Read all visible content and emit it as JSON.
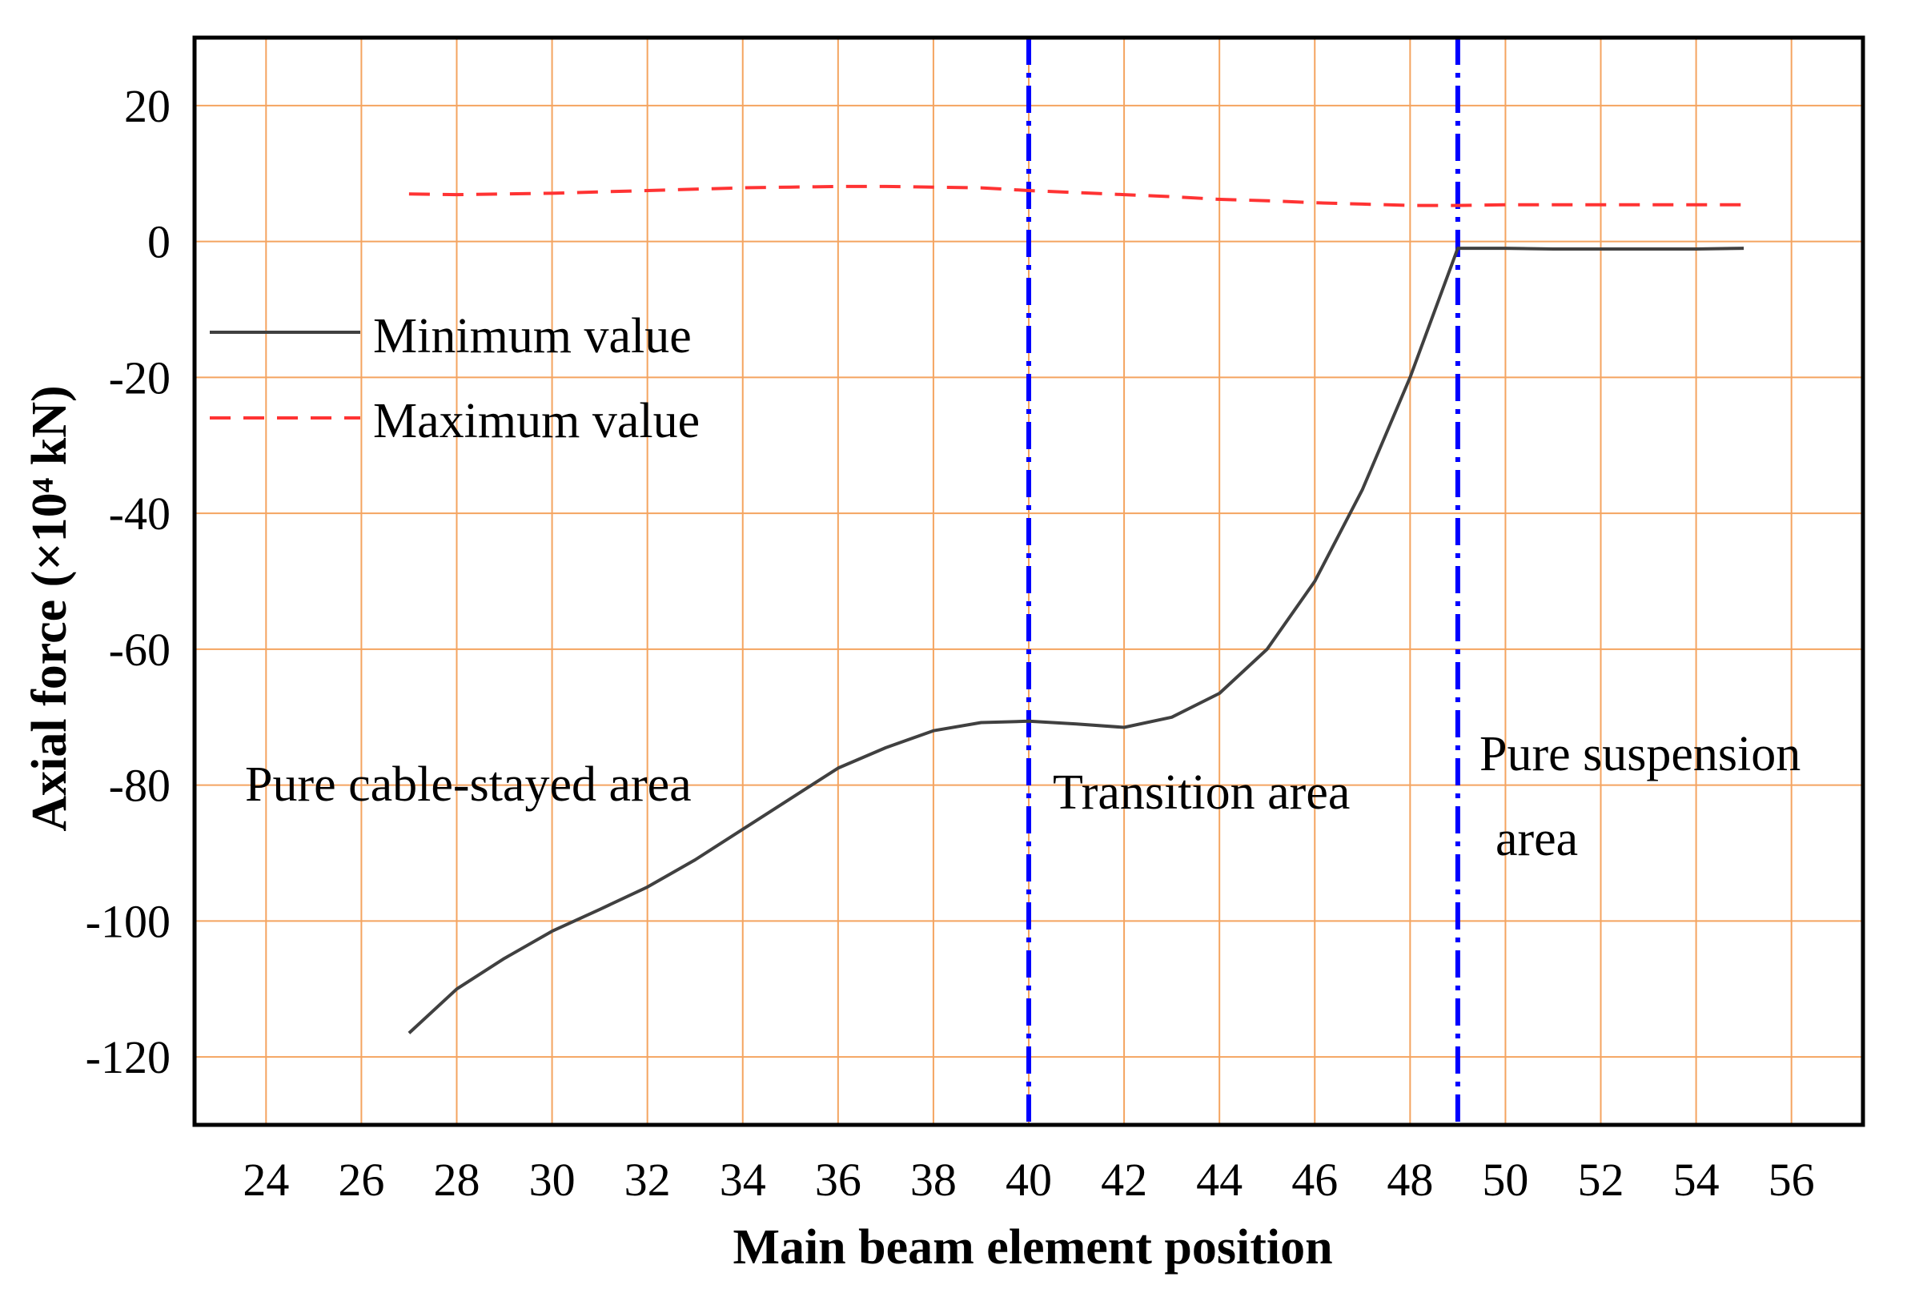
{
  "chart_data": {
    "type": "line",
    "xlabel": "Main beam element position",
    "ylabel": "Axial force (×10⁴ kN)",
    "xlim": [
      22.5,
      57.5
    ],
    "ylim": [
      -130,
      30
    ],
    "xticks": [
      24,
      26,
      28,
      30,
      32,
      34,
      36,
      38,
      40,
      42,
      44,
      46,
      48,
      50,
      52,
      54,
      56
    ],
    "yticks": [
      20,
      0,
      -20,
      -40,
      -60,
      -80,
      -100,
      -120
    ],
    "grid": true,
    "grid_color": "#f4a460",
    "legend_position": "upper-left",
    "series": [
      {
        "name": "Minimum value",
        "style": "solid",
        "color": "#404040",
        "x": [
          27,
          28,
          29,
          30,
          31,
          32,
          33,
          34,
          35,
          36,
          37,
          38,
          39,
          40,
          41,
          42,
          43,
          44,
          45,
          46,
          47,
          48,
          49,
          50,
          51,
          52,
          53,
          54,
          55
        ],
        "values": [
          -116.5,
          -110,
          -105.5,
          -101.5,
          -98.3,
          -95,
          -91,
          -86.5,
          -82,
          -77.5,
          -74.5,
          -72,
          -70.8,
          -70.6,
          -71,
          -71.5,
          -70,
          -66.5,
          -60,
          -50,
          -36.5,
          -20,
          -1,
          -1,
          -1.1,
          -1.1,
          -1.1,
          -1.1,
          -1
        ]
      },
      {
        "name": "Maximum value",
        "style": "dashed",
        "color": "#ff3333",
        "x": [
          27,
          28,
          29,
          30,
          31,
          32,
          33,
          34,
          35,
          36,
          37,
          38,
          39,
          40,
          41,
          42,
          43,
          44,
          45,
          46,
          47,
          48,
          49,
          50,
          51,
          52,
          53,
          54,
          55
        ],
        "values": [
          7,
          6.9,
          7,
          7.1,
          7.3,
          7.5,
          7.7,
          7.9,
          8,
          8.1,
          8.1,
          8,
          7.9,
          7.5,
          7.2,
          6.9,
          6.6,
          6.2,
          6,
          5.7,
          5.5,
          5.3,
          5.3,
          5.4,
          5.4,
          5.4,
          5.4,
          5.4,
          5.4
        ]
      }
    ],
    "region_boundaries": {
      "x": [
        40,
        49
      ],
      "color": "#0000ff",
      "style": "dash-dot"
    },
    "annotations": [
      {
        "name": "cable-stayed",
        "lines": [
          "Pure cable-stayed area"
        ]
      },
      {
        "name": "transition",
        "lines": [
          "Transition area"
        ]
      },
      {
        "name": "suspension",
        "lines": [
          "Pure suspension",
          "area"
        ]
      }
    ]
  }
}
